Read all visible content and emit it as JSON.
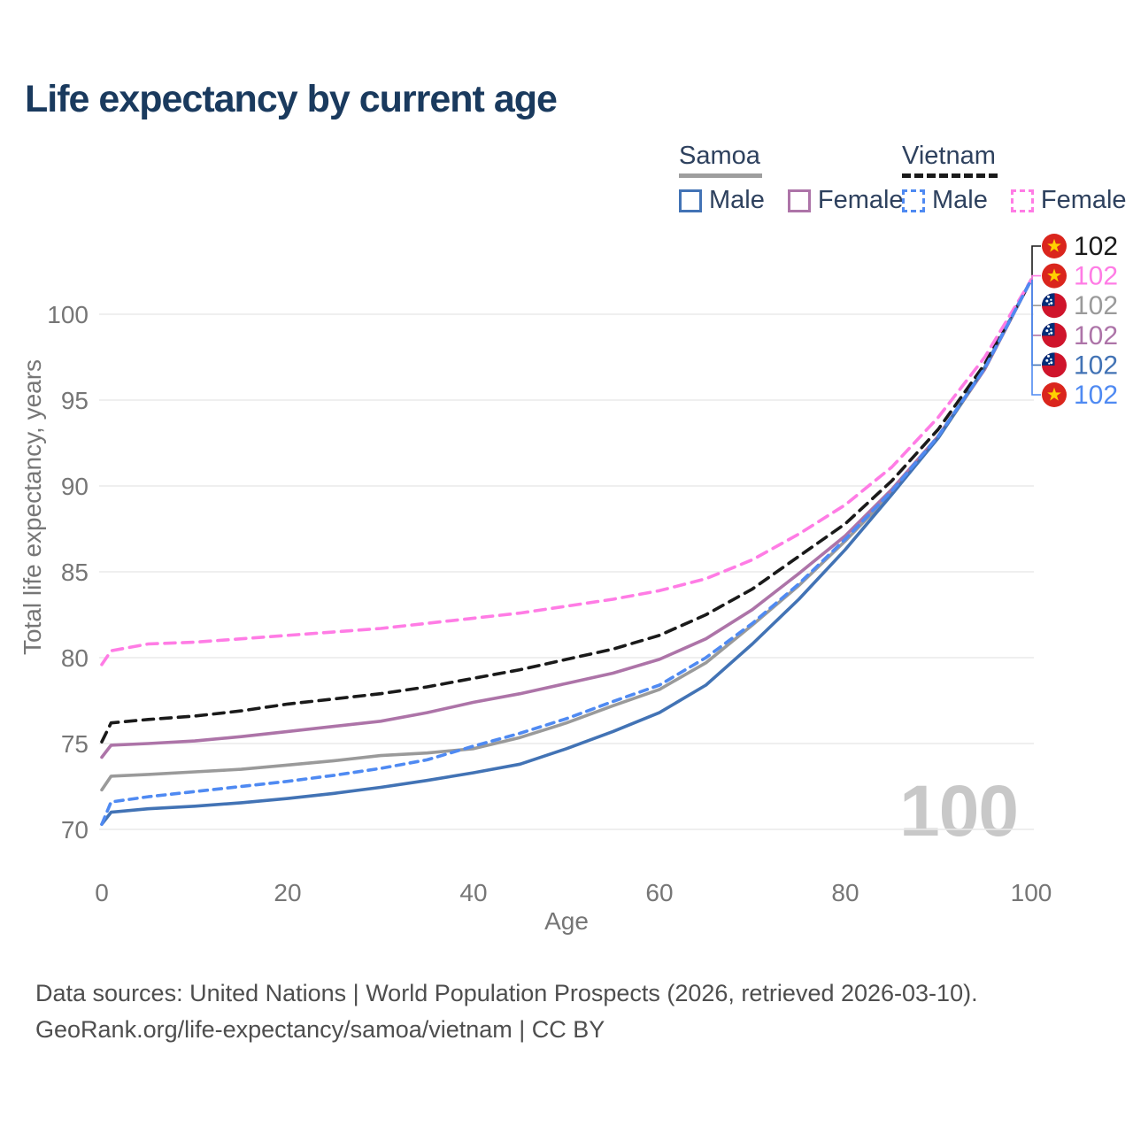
{
  "header": {
    "title": "Life expectancy by current age"
  },
  "legend": {
    "groups": [
      {
        "key": "samoa",
        "label": "Samoa",
        "line_style": "solid",
        "underline_color": "#9e9e9e",
        "items": [
          {
            "label": "Male",
            "color": "#4273b5"
          },
          {
            "label": "Female",
            "color": "#ad74a8"
          }
        ]
      },
      {
        "key": "vietnam",
        "label": "Vietnam",
        "line_style": "dashed",
        "underline_color": "#1a1a1a",
        "items": [
          {
            "label": "Male",
            "color": "#4f8af2"
          },
          {
            "label": "Female",
            "color": "#ff7ce5"
          }
        ]
      }
    ]
  },
  "chart_data": {
    "type": "line",
    "title": "Life expectancy by current age",
    "xlabel": "Age",
    "ylabel": "Total life expectancy, years",
    "xlim": [
      0,
      100
    ],
    "ylim": [
      70,
      102
    ],
    "xticks": [
      0,
      20,
      40,
      60,
      80,
      100
    ],
    "yticks": [
      70,
      75,
      80,
      85,
      90,
      95,
      100
    ],
    "grid": true,
    "legend_position": "top-right",
    "x": [
      0,
      1,
      5,
      10,
      15,
      20,
      25,
      30,
      35,
      40,
      45,
      50,
      55,
      60,
      65,
      70,
      75,
      80,
      85,
      90,
      95,
      100
    ],
    "series": [
      {
        "id": "samoa_both",
        "name": "Samoa — Both sexes",
        "country": "Samoa",
        "sex": "Both",
        "color": "#9a9a9a",
        "dash": null,
        "values": [
          72.3,
          73.1,
          73.2,
          73.35,
          73.5,
          73.75,
          74.0,
          74.3,
          74.45,
          74.7,
          75.35,
          76.2,
          77.2,
          78.15,
          79.7,
          81.9,
          84.2,
          86.8,
          89.6,
          92.8,
          96.8,
          102
        ]
      },
      {
        "id": "samoa_female",
        "name": "Samoa — Female",
        "country": "Samoa",
        "sex": "Female",
        "color": "#ad74a8",
        "dash": null,
        "values": [
          74.2,
          74.9,
          75.0,
          75.15,
          75.4,
          75.7,
          76.0,
          76.3,
          76.8,
          77.4,
          77.9,
          78.5,
          79.1,
          79.9,
          81.1,
          82.8,
          84.9,
          87.1,
          89.8,
          92.9,
          96.8,
          102
        ]
      },
      {
        "id": "samoa_male",
        "name": "Samoa — Male",
        "country": "Samoa",
        "sex": "Male",
        "color": "#4273b5",
        "dash": null,
        "values": [
          70.3,
          71.0,
          71.2,
          71.35,
          71.55,
          71.8,
          72.1,
          72.45,
          72.85,
          73.3,
          73.8,
          74.7,
          75.7,
          76.8,
          78.4,
          80.8,
          83.4,
          86.3,
          89.5,
          92.8,
          96.9,
          102
        ]
      },
      {
        "id": "vietnam_both",
        "name": "Vietnam — Both sexes",
        "country": "Vietnam",
        "sex": "Both",
        "color": "#1a1a1a",
        "dash": "12 8",
        "values": [
          75.1,
          76.2,
          76.4,
          76.6,
          76.9,
          77.3,
          77.6,
          77.9,
          78.3,
          78.8,
          79.3,
          79.9,
          80.5,
          81.3,
          82.5,
          84.0,
          85.9,
          87.8,
          90.3,
          93.3,
          97.1,
          102
        ]
      },
      {
        "id": "vietnam_female",
        "name": "Vietnam — Female",
        "country": "Vietnam",
        "sex": "Female",
        "color": "#ff7ce5",
        "dash": "12 8",
        "values": [
          79.6,
          80.4,
          80.8,
          80.9,
          81.1,
          81.3,
          81.5,
          81.7,
          82.0,
          82.3,
          82.6,
          83.0,
          83.4,
          83.9,
          84.6,
          85.7,
          87.2,
          88.9,
          91.1,
          94.0,
          97.5,
          102
        ]
      },
      {
        "id": "vietnam_male",
        "name": "Vietnam — Male",
        "country": "Vietnam",
        "sex": "Male",
        "color": "#4f8af2",
        "dash": "9 7",
        "values": [
          70.3,
          71.6,
          71.9,
          72.2,
          72.5,
          72.8,
          73.15,
          73.55,
          74.05,
          74.85,
          75.6,
          76.45,
          77.45,
          78.4,
          80.0,
          82.0,
          84.3,
          86.9,
          89.7,
          92.9,
          96.85,
          102
        ]
      }
    ],
    "end_labels": [
      {
        "series": "vietnam_both",
        "flag": "vietnam",
        "value": "102"
      },
      {
        "series": "vietnam_female",
        "flag": "vietnam",
        "value": "102"
      },
      {
        "series": "samoa_both",
        "flag": "samoa",
        "value": "102"
      },
      {
        "series": "samoa_female",
        "flag": "samoa",
        "value": "102"
      },
      {
        "series": "samoa_male",
        "flag": "samoa",
        "value": "102"
      },
      {
        "series": "vietnam_male",
        "flag": "vietnam",
        "value": "102"
      }
    ],
    "flag_colors": {
      "vietnam_red": "#da251d",
      "vietnam_star": "#ffd100",
      "samoa_red": "#cf142b",
      "samoa_canton": "#002d78",
      "samoa_stars": "#ffffff"
    }
  },
  "watermark": "100",
  "footer": {
    "line1": "Data sources: United Nations | World Population Prospects (2026, retrieved 2026-03-10).",
    "line2": "GeoRank.org/life-expectancy/samoa/vietnam | CC BY"
  }
}
